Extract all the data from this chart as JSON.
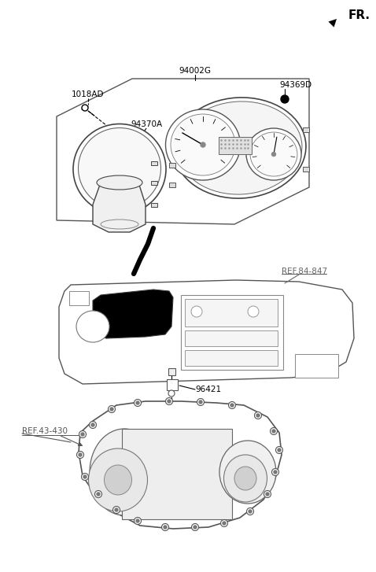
{
  "bg_color": "#ffffff",
  "line_color": "#000000",
  "text_color": "#000000",
  "figsize": [
    4.78,
    7.27
  ],
  "dpi": 100,
  "labels": {
    "FR": "FR.",
    "part_94002G": "94002G",
    "part_1018AD": "1018AD",
    "part_94370A": "94370A",
    "part_94369D": "94369D",
    "ref_84847": "REF.84-847",
    "ref_43430": "REF.43-430",
    "part_96421": "96421"
  }
}
